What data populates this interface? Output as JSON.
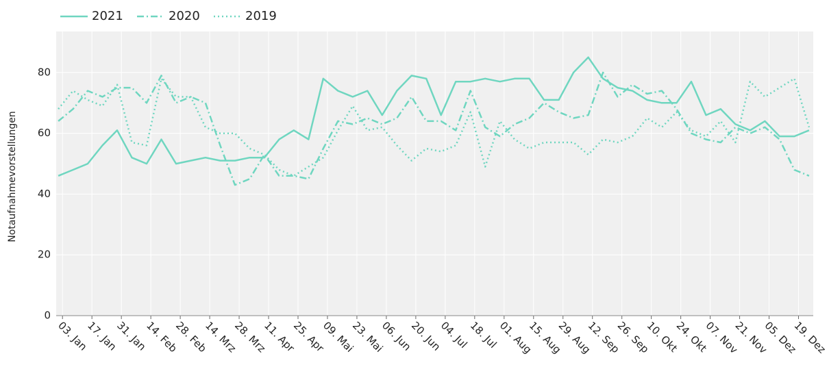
{
  "chart_data": {
    "type": "line",
    "y_label": "Notaufnahmevorstellungen",
    "x": [
      0,
      7,
      14,
      21,
      28,
      35,
      42,
      49,
      56,
      63,
      70,
      77,
      84,
      91,
      98,
      105,
      112,
      119,
      126,
      133,
      140,
      147,
      154,
      161,
      168,
      175,
      182,
      189,
      196,
      203,
      210,
      217,
      224,
      231,
      238,
      245,
      252,
      259,
      266,
      273,
      280,
      287,
      294,
      301,
      308,
      315,
      322,
      329,
      336,
      343,
      350,
      357
    ],
    "series": [
      {
        "name": "2021",
        "color": "#6fd6c0",
        "dash": "solid",
        "values": [
          46,
          48,
          50,
          56,
          61,
          52,
          50,
          58,
          50,
          51,
          52,
          51,
          51,
          52,
          52,
          58,
          61,
          58,
          78,
          74,
          72,
          74,
          66,
          74,
          79,
          78,
          66,
          77,
          77,
          78,
          77,
          78,
          78,
          71,
          71,
          80,
          85,
          78,
          75,
          74,
          71,
          70,
          70,
          77,
          66,
          68,
          63,
          61,
          64,
          59,
          59,
          61
        ]
      },
      {
        "name": "2020",
        "color": "#6fd6c0",
        "dash": "dashdot",
        "values": [
          64,
          68,
          74,
          72,
          75,
          75,
          70,
          79,
          70,
          72,
          70,
          56,
          43,
          45,
          53,
          46,
          46,
          45,
          55,
          64,
          63,
          65,
          63,
          65,
          72,
          64,
          64,
          61,
          74,
          62,
          59,
          63,
          65,
          70,
          67,
          65,
          66,
          80,
          72,
          76,
          73,
          74,
          68,
          60,
          58,
          57,
          62,
          60,
          62,
          58,
          48,
          46
        ]
      },
      {
        "name": "2019",
        "color": "#6fd6c0",
        "dash": "dot",
        "values": [
          68,
          74,
          71,
          69,
          76,
          57,
          56,
          78,
          72,
          72,
          62,
          60,
          60,
          55,
          53,
          48,
          46,
          49,
          52,
          61,
          69,
          61,
          62,
          56,
          51,
          55,
          54,
          56,
          67,
          49,
          64,
          58,
          55,
          57,
          57,
          57,
          53,
          58,
          57,
          59,
          65,
          62,
          67,
          61,
          59,
          64,
          57,
          77,
          72,
          75,
          78,
          62
        ]
      }
    ],
    "xlim": [
      -1,
      359
    ],
    "xticks": [
      {
        "value": 2,
        "label": "03. Jan"
      },
      {
        "value": 16,
        "label": "17. Jan"
      },
      {
        "value": 30,
        "label": "31. Jan"
      },
      {
        "value": 44,
        "label": "14. Feb"
      },
      {
        "value": 58,
        "label": "28. Feb"
      },
      {
        "value": 72,
        "label": "14. Mrz"
      },
      {
        "value": 86,
        "label": "28. Mrz"
      },
      {
        "value": 100,
        "label": "11. Apr"
      },
      {
        "value": 114,
        "label": "25. Apr"
      },
      {
        "value": 128,
        "label": "09. Mai"
      },
      {
        "value": 142,
        "label": "23. Mai"
      },
      {
        "value": 156,
        "label": "06. Jun"
      },
      {
        "value": 170,
        "label": "20. Jun"
      },
      {
        "value": 184,
        "label": "04. Jul"
      },
      {
        "value": 198,
        "label": "18. Jul"
      },
      {
        "value": 212,
        "label": "01. Aug"
      },
      {
        "value": 226,
        "label": "15. Aug"
      },
      {
        "value": 240,
        "label": "29. Aug"
      },
      {
        "value": 254,
        "label": "12. Sep"
      },
      {
        "value": 268,
        "label": "26. Sep"
      },
      {
        "value": 282,
        "label": "10. Okt"
      },
      {
        "value": 296,
        "label": "24. Okt"
      },
      {
        "value": 310,
        "label": "07. Nov"
      },
      {
        "value": 324,
        "label": "21. Nov"
      },
      {
        "value": 338,
        "label": "05. Dez"
      },
      {
        "value": 352,
        "label": "19. Dez"
      }
    ],
    "ylim": [
      0,
      93.5
    ],
    "yticks": [
      0,
      20,
      40,
      60,
      80
    ],
    "grid": true,
    "legend": "top-left"
  }
}
